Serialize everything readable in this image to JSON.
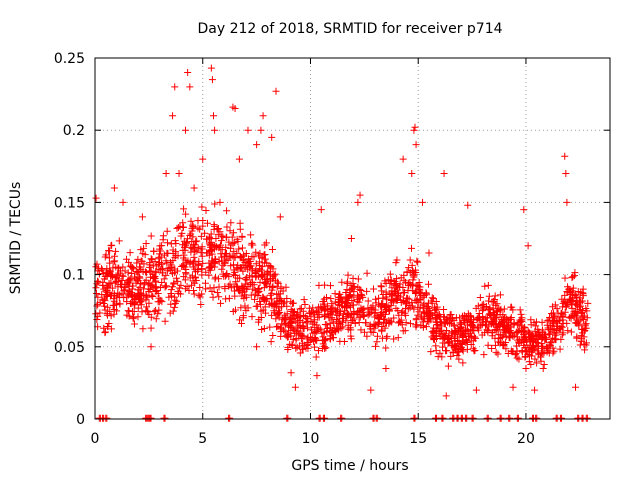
{
  "chart_data": {
    "type": "scatter",
    "title": "Day 212 of 2018, SRMTID for receiver p714",
    "xlabel": "GPS time / hours",
    "ylabel": "SRMTID / TECUs",
    "xlim": [
      0,
      23.9
    ],
    "ylim": [
      0,
      0.25
    ],
    "x_ticks": [
      0,
      5,
      10,
      15,
      20
    ],
    "x_tick_labels": [
      "0",
      "5",
      "10",
      "15",
      "20"
    ],
    "y_ticks": [
      0,
      0.05,
      0.1,
      0.15,
      0.2,
      0.25
    ],
    "y_tick_labels": [
      "0",
      "0.05",
      "0.1",
      "0.15",
      "0.2",
      "0.25"
    ],
    "grid": true,
    "marker": "+",
    "series": [
      {
        "name": "SRMTID",
        "color": "#ff0000",
        "trend": [
          [
            0,
            0.085
          ],
          [
            1,
            0.095
          ],
          [
            2,
            0.09
          ],
          [
            3,
            0.1
          ],
          [
            4,
            0.11
          ],
          [
            5,
            0.115
          ],
          [
            6,
            0.11
          ],
          [
            7,
            0.1
          ],
          [
            8,
            0.095
          ],
          [
            9,
            0.065
          ],
          [
            10,
            0.065
          ],
          [
            11,
            0.07
          ],
          [
            12,
            0.08
          ],
          [
            13,
            0.07
          ],
          [
            14,
            0.085
          ],
          [
            15,
            0.085
          ],
          [
            16,
            0.06
          ],
          [
            17,
            0.055
          ],
          [
            18,
            0.07
          ],
          [
            19,
            0.065
          ],
          [
            20,
            0.055
          ],
          [
            21,
            0.055
          ],
          [
            22,
            0.08
          ],
          [
            23,
            0.065
          ]
        ],
        "highlights": [
          [
            0.05,
            0.153
          ],
          [
            0.4,
            0.08
          ],
          [
            0.9,
            0.16
          ],
          [
            1.3,
            0.15
          ],
          [
            2.2,
            0.14
          ],
          [
            2.6,
            0.05
          ],
          [
            3.3,
            0.17
          ],
          [
            3.35,
            0.13
          ],
          [
            3.6,
            0.21
          ],
          [
            3.7,
            0.23
          ],
          [
            3.9,
            0.17
          ],
          [
            4.2,
            0.2
          ],
          [
            4.3,
            0.24
          ],
          [
            4.4,
            0.23
          ],
          [
            4.6,
            0.16
          ],
          [
            5.0,
            0.18
          ],
          [
            5.4,
            0.243
          ],
          [
            5.45,
            0.235
          ],
          [
            5.5,
            0.21
          ],
          [
            5.55,
            0.2
          ],
          [
            5.8,
            0.15
          ],
          [
            6.4,
            0.216
          ],
          [
            6.5,
            0.215
          ],
          [
            6.7,
            0.18
          ],
          [
            7.1,
            0.2
          ],
          [
            7.5,
            0.19
          ],
          [
            7.5,
            0.05
          ],
          [
            7.7,
            0.2
          ],
          [
            7.8,
            0.21
          ],
          [
            8.2,
            0.195
          ],
          [
            8.4,
            0.227
          ],
          [
            8.6,
            0.14
          ],
          [
            9.1,
            0.032
          ],
          [
            9.3,
            0.022
          ],
          [
            10.3,
            0.03
          ],
          [
            10.5,
            0.145
          ],
          [
            11.9,
            0.125
          ],
          [
            12.2,
            0.15
          ],
          [
            12.3,
            0.155
          ],
          [
            12.8,
            0.02
          ],
          [
            13.5,
            0.035
          ],
          [
            14.3,
            0.18
          ],
          [
            14.7,
            0.17
          ],
          [
            14.8,
            0.2
          ],
          [
            14.85,
            0.202
          ],
          [
            14.9,
            0.19
          ],
          [
            15.2,
            0.15
          ],
          [
            15.5,
            0.115
          ],
          [
            16.2,
            0.17
          ],
          [
            16.3,
            0.016
          ],
          [
            17.3,
            0.148
          ],
          [
            17.7,
            0.02
          ],
          [
            18.7,
            0.045
          ],
          [
            19.4,
            0.022
          ],
          [
            19.9,
            0.145
          ],
          [
            20.1,
            0.12
          ],
          [
            20.0,
            0.035
          ],
          [
            20.4,
            0.02
          ],
          [
            20.8,
            0.035
          ],
          [
            21.8,
            0.182
          ],
          [
            21.85,
            0.17
          ],
          [
            21.9,
            0.15
          ],
          [
            22.3,
            0.022
          ],
          [
            22.6,
            0.07
          ]
        ],
        "zero_points": [
          0.2,
          0.35,
          0.5,
          2.35,
          2.45,
          2.55,
          3.2,
          6.2,
          8.9,
          10.4,
          10.6,
          11.4,
          12.9,
          13.05,
          14.8,
          15.8,
          16.1,
          16.6,
          16.8,
          17.0,
          17.2,
          17.5,
          18.2,
          18.8,
          19.2,
          19.6,
          20.3,
          20.45,
          21.4,
          21.6,
          22.4,
          22.6,
          22.8
        ]
      }
    ]
  }
}
